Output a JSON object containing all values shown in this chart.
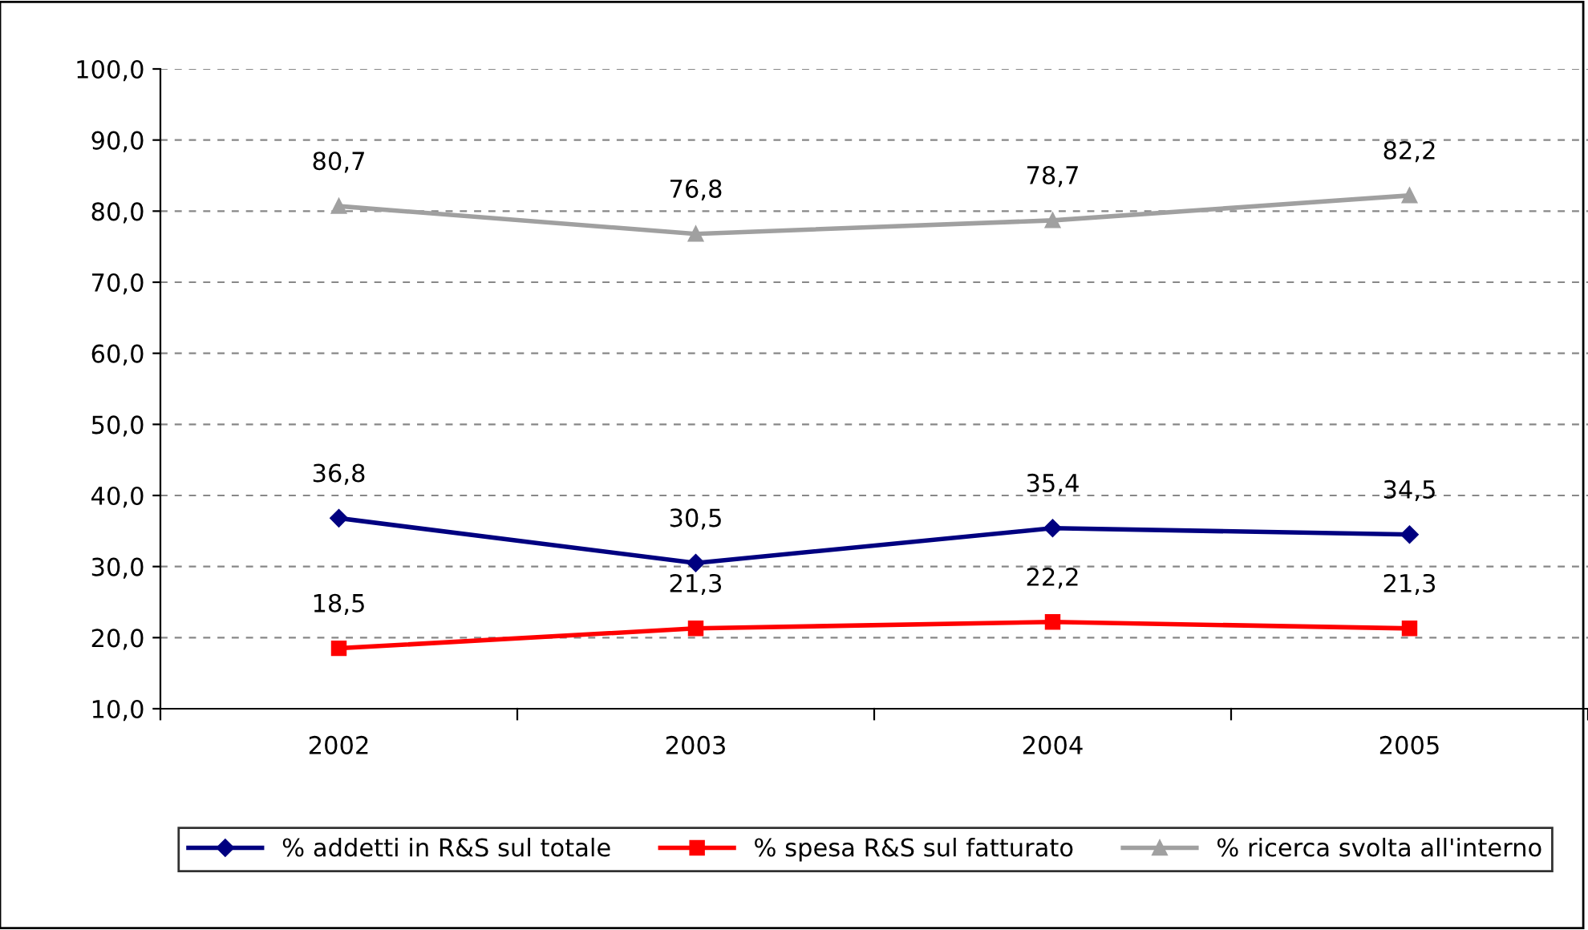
{
  "chart_data": {
    "type": "line",
    "categories": [
      "2002",
      "2003",
      "2004",
      "2005"
    ],
    "series": [
      {
        "name": "% addetti in R&S sul totale",
        "color": "#000080",
        "marker": "diamond",
        "values": [
          36.8,
          30.5,
          35.4,
          34.5
        ],
        "value_labels": [
          "36,8",
          "30,5",
          "35,4",
          "34,5"
        ]
      },
      {
        "name": "% spesa R&S sul fatturato",
        "color": "#ff0000",
        "marker": "square",
        "values": [
          18.5,
          21.3,
          22.2,
          21.3
        ],
        "value_labels": [
          "18,5",
          "21,3",
          "22,2",
          "21,3"
        ]
      },
      {
        "name": "% ricerca svolta all'interno",
        "color": "#a0a0a0",
        "marker": "triangle",
        "values": [
          80.7,
          76.8,
          78.7,
          82.2
        ],
        "value_labels": [
          "80,7",
          "76,8",
          "78,7",
          "82,2"
        ]
      }
    ],
    "ylim": [
      10,
      100
    ],
    "yticks": [
      {
        "value": 10,
        "label": "10,0"
      },
      {
        "value": 20,
        "label": "20,0"
      },
      {
        "value": 30,
        "label": "30,0"
      },
      {
        "value": 40,
        "label": "40,0"
      },
      {
        "value": 50,
        "label": "50,0"
      },
      {
        "value": 60,
        "label": "60,0"
      },
      {
        "value": 70,
        "label": "70,0"
      },
      {
        "value": 80,
        "label": "80,0"
      },
      {
        "value": 90,
        "label": "90,0"
      },
      {
        "value": 100,
        "label": "100,0"
      }
    ],
    "grid": "y",
    "legend": "bottom",
    "line_style": "solid"
  }
}
